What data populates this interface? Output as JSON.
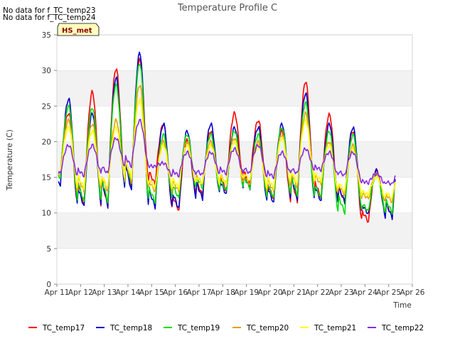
{
  "notes": [
    "No data for f_TC_temp23",
    "No data for f_TC_temp24"
  ],
  "badge": "HS_met",
  "chart_data": {
    "type": "line",
    "title": "Temperature Profile C",
    "xlabel": "Time",
    "ylabel": "Temperature (C)",
    "ylim": [
      0,
      35
    ],
    "xlim": [
      11,
      26
    ],
    "yticks": [
      0,
      5,
      10,
      15,
      20,
      25,
      30,
      35
    ],
    "xticks": [
      {
        "value": 11,
        "label": "Apr 11"
      },
      {
        "value": 12,
        "label": "Apr 12"
      },
      {
        "value": 13,
        "label": "Apr 13"
      },
      {
        "value": 14,
        "label": "Apr 14"
      },
      {
        "value": 15,
        "label": "Apr 15"
      },
      {
        "value": 16,
        "label": "Apr 16"
      },
      {
        "value": 17,
        "label": "Apr 17"
      },
      {
        "value": 18,
        "label": "Apr 18"
      },
      {
        "value": 19,
        "label": "Apr 19"
      },
      {
        "value": 20,
        "label": "Apr 20"
      },
      {
        "value": 21,
        "label": "Apr 21"
      },
      {
        "value": 22,
        "label": "Apr 22"
      },
      {
        "value": 23,
        "label": "Apr 23"
      },
      {
        "value": 24,
        "label": "Apr 24"
      },
      {
        "value": 25,
        "label": "Apr 25"
      },
      {
        "value": 26,
        "label": "Apr 26"
      }
    ],
    "grid": "horizontal bands",
    "legend_position": "bottom",
    "days": [
      11,
      12,
      13,
      14,
      15,
      16,
      17,
      18,
      19,
      20,
      21,
      22,
      23,
      24,
      25
    ],
    "series": [
      {
        "name": "TC_temp17",
        "color": "#ff0000",
        "daily_min": [
          15.5,
          11.0,
          10.8,
          13.5,
          14.0,
          10.3,
          12.5,
          13.0,
          14.0,
          12.0,
          11.5,
          12.0,
          11.5,
          8.7,
          9.5
        ],
        "daily_max": [
          24.0,
          27.0,
          30.3,
          31.5,
          22.5,
          20.2,
          21.5,
          24.0,
          23.0,
          21.5,
          28.5,
          23.8,
          21.5,
          16.0,
          19.0
        ]
      },
      {
        "name": "TC_temp18",
        "color": "#0000cc",
        "daily_min": [
          14.0,
          10.8,
          11.0,
          13.0,
          10.8,
          10.5,
          12.0,
          12.5,
          13.5,
          11.3,
          12.0,
          11.5,
          11.5,
          9.8,
          9.3
        ],
        "daily_max": [
          26.0,
          24.0,
          29.0,
          32.5,
          22.5,
          21.5,
          22.5,
          22.0,
          22.0,
          22.5,
          26.8,
          22.5,
          22.0,
          16.0,
          19.5
        ]
      },
      {
        "name": "TC_temp19",
        "color": "#00dd00",
        "daily_min": [
          15.0,
          11.5,
          11.5,
          14.0,
          11.5,
          12.0,
          13.5,
          13.0,
          13.5,
          12.0,
          12.5,
          12.0,
          10.0,
          10.2,
          10.0
        ],
        "daily_max": [
          25.0,
          24.8,
          28.0,
          31.0,
          21.0,
          21.0,
          21.0,
          21.5,
          21.0,
          22.0,
          25.5,
          21.5,
          21.0,
          15.5,
          18.5
        ]
      },
      {
        "name": "TC_temp20",
        "color": "#e6a000",
        "daily_min": [
          15.5,
          13.0,
          13.0,
          14.5,
          13.0,
          13.0,
          14.0,
          14.0,
          14.0,
          13.0,
          13.5,
          14.0,
          12.5,
          12.0,
          11.5
        ],
        "daily_max": [
          23.0,
          22.5,
          23.0,
          28.0,
          20.0,
          20.0,
          20.0,
          20.5,
          20.0,
          21.0,
          24.0,
          20.0,
          19.5,
          15.5,
          17.0
        ]
      },
      {
        "name": "TC_temp21",
        "color": "#ffff00",
        "daily_min": [
          15.5,
          13.5,
          13.5,
          15.0,
          13.5,
          13.5,
          14.0,
          14.0,
          14.5,
          13.5,
          14.0,
          14.5,
          13.0,
          12.5,
          12.0
        ],
        "daily_max": [
          22.0,
          21.5,
          22.0,
          26.0,
          19.5,
          19.5,
          19.5,
          20.0,
          19.5,
          20.5,
          23.0,
          19.5,
          19.0,
          15.0,
          16.5
        ]
      },
      {
        "name": "TC_temp22",
        "color": "#8a2be2",
        "daily_min": [
          15.5,
          15.2,
          15.5,
          16.5,
          16.5,
          15.2,
          15.3,
          15.5,
          15.5,
          15.0,
          15.5,
          16.0,
          15.2,
          14.2,
          14.0
        ],
        "daily_max": [
          19.5,
          19.5,
          20.5,
          23.0,
          17.0,
          18.5,
          18.5,
          19.0,
          19.5,
          18.5,
          19.0,
          18.5,
          18.5,
          15.5,
          16.0
        ]
      }
    ]
  }
}
